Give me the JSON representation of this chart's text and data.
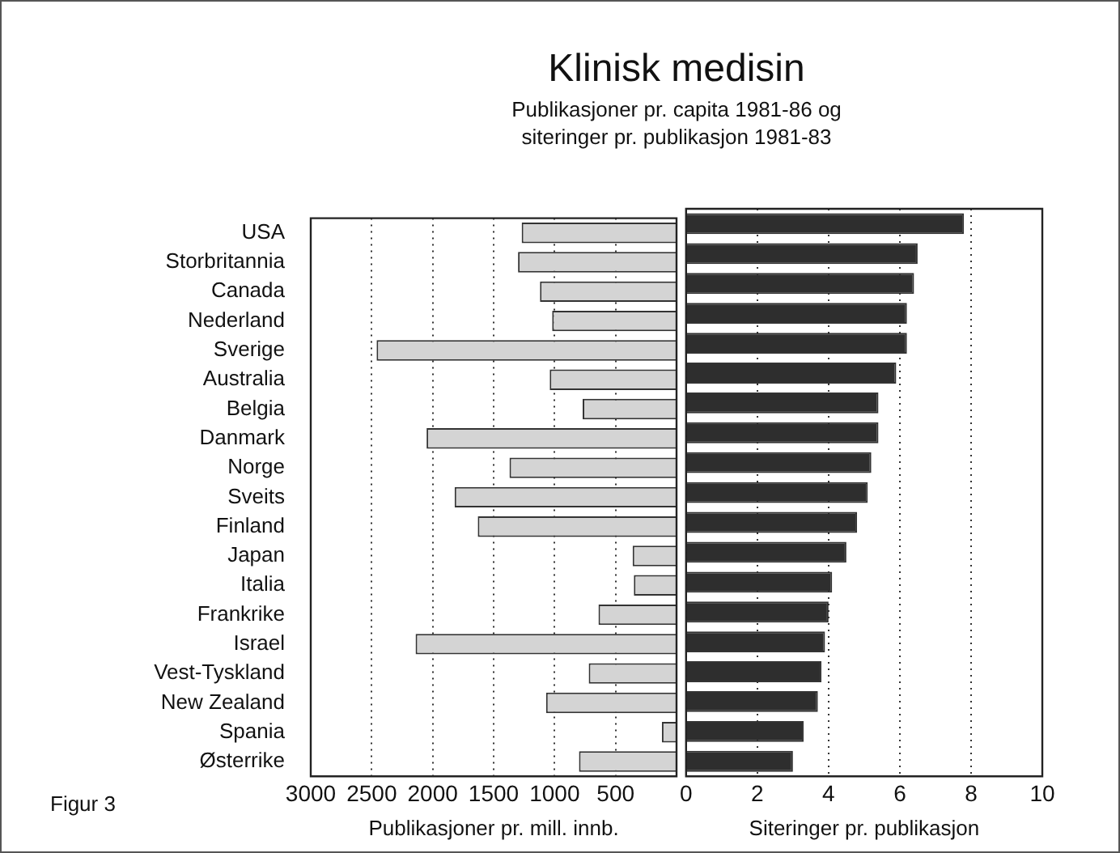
{
  "chart_data": [
    {
      "type": "bar",
      "orientation": "horizontal",
      "title": "Klinisk medisin",
      "subtitle": "Publikasjoner pr. capita 1981-86 og\nsiteringer pr. publikasjon 1981-83",
      "annotations": [
        "Figur 3"
      ],
      "categories": [
        "USA",
        "Storbritannia",
        "Canada",
        "Nederland",
        "Sverige",
        "Australia",
        "Belgia",
        "Danmark",
        "Norge",
        "Sveits",
        "Finland",
        "Japan",
        "Italia",
        "Frankrike",
        "Israel",
        "Vest-Tyskland",
        "New Zealand",
        "Spania",
        "Østerrike"
      ],
      "values": [
        1270,
        1300,
        1120,
        1020,
        2460,
        1040,
        770,
        2050,
        1370,
        1820,
        1630,
        360,
        350,
        640,
        2140,
        720,
        1070,
        120,
        800
      ],
      "color": "#d4d4d4",
      "xlim": [
        3000,
        0
      ],
      "xticks": [
        3000,
        2500,
        2000,
        1500,
        1000,
        500,
        {
          "value": 0,
          "label": null
        }
      ],
      "xlabel": "Publikasjoner pr. mill. innb.",
      "grid": "x"
    },
    {
      "type": "bar",
      "orientation": "horizontal",
      "tick_labels": "x",
      "categories": [
        null,
        null,
        null,
        null,
        null,
        null,
        null,
        null,
        null,
        null,
        null,
        null,
        null,
        null,
        null,
        null,
        null,
        null,
        null
      ],
      "values": [
        7.8,
        6.5,
        6.4,
        6.2,
        6.2,
        5.9,
        5.4,
        5.4,
        5.2,
        5.1,
        4.8,
        4.5,
        4.1,
        4.0,
        3.9,
        3.8,
        3.7,
        3.3,
        3.0
      ],
      "color": "#2e2e2e",
      "xlim": [
        0,
        10
      ],
      "xticks": [
        0,
        2,
        4,
        6,
        8,
        10
      ],
      "xlabel": "Siteringer pr. publikasjon",
      "grid": "x"
    }
  ]
}
